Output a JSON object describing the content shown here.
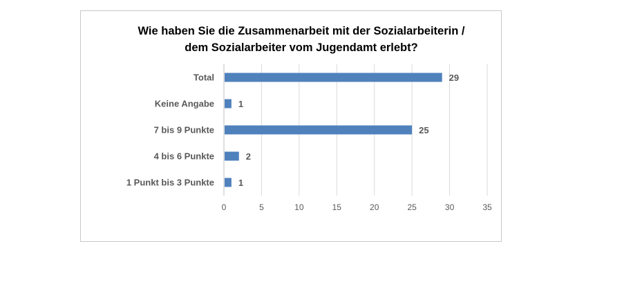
{
  "chart_data": {
    "type": "bar",
    "orientation": "horizontal",
    "title_lines": [
      "Wie haben Sie die Zusammenarbeit mit der Sozialarbeiterin /",
      "dem Sozialarbeiter vom Jugendamt erlebt?"
    ],
    "categories": [
      "Total",
      "Keine Angabe",
      "7 bis 9 Punkte",
      "4 bis 6 Punkte",
      "1 Punkt bis 3 Punkte"
    ],
    "values": [
      29,
      1,
      25,
      2,
      1
    ],
    "xlim": [
      0,
      35
    ],
    "xticks": [
      0,
      5,
      10,
      15,
      20,
      25,
      30,
      35
    ],
    "grid": true,
    "bar_color": "#4f81bd",
    "legend": "none"
  }
}
